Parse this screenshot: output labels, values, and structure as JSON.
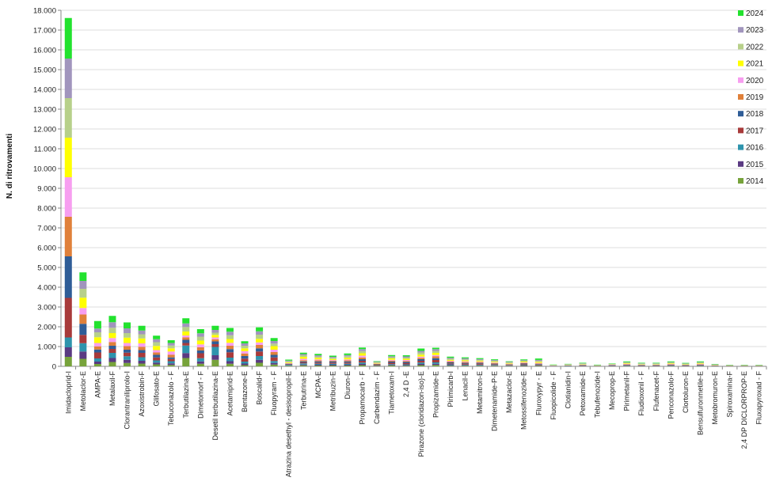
{
  "chart_data": {
    "type": "bar",
    "stacked": true,
    "title": "",
    "xlabel": "",
    "ylabel": "N. di ritrovamenti",
    "ylim": [
      0,
      18000
    ],
    "yticks": [
      "0",
      "1.000",
      "2.000",
      "3.000",
      "4.000",
      "5.000",
      "6.000",
      "7.000",
      "8.000",
      "9.000",
      "10.000",
      "11.000",
      "12.000",
      "13.000",
      "14.000",
      "15.000",
      "16.000",
      "17.000",
      "18.000"
    ],
    "grid": true,
    "legend_position": "right",
    "categories": [
      "Imidacloprid-I",
      "Metolaclor-E",
      "AMPA-E",
      "Metalaxil-F",
      "Clorantraniliprolo-I",
      "Azoxistrobin-F",
      "Glifosato-E",
      "Tebuconazolo - F",
      "Terbutilazina-E",
      "Dimetomorf - F",
      "Desetil terbutilazina-E",
      "Acetamiprid-E",
      "Bentazone-E",
      "Boscalid-F",
      "Fluopyram - F",
      "Atrazina desethyl - desisopropil-E",
      "Terbutrina-E",
      "MCPA-E",
      "Metribuzin-E",
      "Diuron-E",
      "Propamocarb - F",
      "Carbendazim - F",
      "Tiametoxam-I",
      "2,4 D -E",
      "Pirazone (cloridazon-iso)-E",
      "Propizamide-E",
      "Pirimicarb-I",
      "Lenacil-E",
      "Metamitron-E",
      "Dimetenamide-P-E",
      "Metazaclor-E",
      "Metossifenozide-E",
      "Fluroxypyr - E",
      "Fluopicolide - F",
      "Clotianidin-I",
      "Petoxamide-E",
      "Tebufenozide-I",
      "Mecoprop-E",
      "Pirimetanil-F",
      "Fludioxonil - F",
      "Flufenacet-F",
      "Penconazolo-F",
      "Clortoluron-E",
      "Bensulfuronmetile-E",
      "Metobromuron-E",
      "Spiroxamina-F",
      "2,4 DP DICLORPROP-E",
      "Fluxapyroxad - F"
    ],
    "series": [
      {
        "name": "2014",
        "color": "#77a33b",
        "values": [
          480,
          380,
          120,
          220,
          170,
          140,
          100,
          70,
          420,
          130,
          330,
          130,
          60,
          180,
          90,
          30,
          50,
          40,
          40,
          40,
          60,
          20,
          40,
          30,
          60,
          70,
          30,
          30,
          30,
          25,
          15,
          20,
          20,
          5,
          5,
          10,
          5,
          10,
          15,
          10,
          10,
          15,
          10,
          15,
          5,
          5,
          5,
          5
        ]
      },
      {
        "name": "2015",
        "color": "#5a3a82",
        "values": [
          480,
          370,
          120,
          200,
          160,
          140,
          90,
          80,
          250,
          120,
          230,
          130,
          80,
          150,
          80,
          20,
          40,
          40,
          40,
          40,
          60,
          15,
          30,
          30,
          60,
          60,
          30,
          25,
          25,
          20,
          15,
          20,
          15,
          5,
          5,
          10,
          5,
          10,
          15,
          10,
          10,
          15,
          10,
          15,
          5,
          5,
          5,
          5
        ]
      },
      {
        "name": "2016",
        "color": "#2e94ad",
        "values": [
          500,
          420,
          160,
          260,
          180,
          180,
          110,
          110,
          380,
          160,
          420,
          180,
          100,
          190,
          100,
          30,
          60,
          50,
          50,
          50,
          70,
          20,
          40,
          40,
          70,
          70,
          40,
          30,
          30,
          25,
          20,
          25,
          20,
          5,
          10,
          10,
          5,
          10,
          15,
          10,
          10,
          15,
          10,
          15,
          5,
          5,
          5,
          5
        ]
      },
      {
        "name": "2017",
        "color": "#a83a3a",
        "values": [
          2000,
          420,
          300,
          200,
          180,
          220,
          150,
          110,
          130,
          250,
          140,
          270,
          150,
          230,
          180,
          25,
          50,
          60,
          60,
          60,
          90,
          25,
          70,
          60,
          90,
          120,
          50,
          50,
          50,
          35,
          25,
          40,
          30,
          5,
          10,
          15,
          5,
          15,
          20,
          15,
          15,
          20,
          15,
          20,
          10,
          5,
          5,
          5
        ]
      },
      {
        "name": "2018",
        "color": "#2f5d97",
        "values": [
          2100,
          560,
          150,
          160,
          150,
          140,
          130,
          80,
          160,
          140,
          140,
          160,
          130,
          160,
          130,
          25,
          50,
          60,
          60,
          60,
          80,
          20,
          60,
          60,
          80,
          90,
          50,
          40,
          40,
          30,
          20,
          35,
          30,
          5,
          10,
          15,
          5,
          15,
          20,
          15,
          15,
          20,
          15,
          20,
          10,
          5,
          5,
          5
        ]
      },
      {
        "name": "2019",
        "color": "#e0803a",
        "values": [
          2000,
          470,
          160,
          190,
          180,
          170,
          120,
          140,
          120,
          160,
          110,
          170,
          130,
          170,
          140,
          20,
          60,
          50,
          40,
          50,
          90,
          20,
          50,
          50,
          70,
          90,
          40,
          40,
          40,
          30,
          20,
          30,
          30,
          5,
          10,
          15,
          5,
          10,
          20,
          15,
          15,
          20,
          15,
          20,
          10,
          5,
          5,
          5
        ]
      },
      {
        "name": "2020",
        "color": "#f79ef0",
        "values": [
          2000,
          330,
          170,
          200,
          160,
          170,
          120,
          160,
          100,
          150,
          90,
          150,
          120,
          130,
          120,
          20,
          70,
          50,
          30,
          50,
          90,
          20,
          40,
          50,
          60,
          70,
          40,
          40,
          30,
          30,
          20,
          30,
          30,
          10,
          10,
          15,
          5,
          10,
          20,
          15,
          15,
          20,
          10,
          20,
          10,
          5,
          5,
          5
        ]
      },
      {
        "name": "2021",
        "color": "#ffff00",
        "values": [
          2000,
          520,
          290,
          250,
          270,
          250,
          210,
          160,
          200,
          190,
          130,
          190,
          140,
          180,
          180,
          40,
          100,
          80,
          50,
          80,
          120,
          30,
          70,
          60,
          100,
          110,
          50,
          50,
          40,
          40,
          30,
          40,
          50,
          10,
          15,
          20,
          10,
          15,
          30,
          20,
          20,
          30,
          20,
          30,
          15,
          10,
          10,
          10
        ]
      },
      {
        "name": "2022",
        "color": "#b7d08a",
        "values": [
          2000,
          450,
          250,
          270,
          230,
          210,
          190,
          140,
          230,
          200,
          110,
          190,
          130,
          210,
          130,
          40,
          80,
          70,
          60,
          80,
          110,
          30,
          60,
          60,
          110,
          100,
          50,
          50,
          40,
          40,
          30,
          40,
          50,
          10,
          15,
          20,
          10,
          15,
          30,
          20,
          20,
          30,
          20,
          30,
          15,
          10,
          10,
          10
        ]
      },
      {
        "name": "2023",
        "color": "#a195bd",
        "values": [
          2000,
          400,
          190,
          280,
          240,
          190,
          150,
          130,
          180,
          170,
          140,
          180,
          120,
          170,
          130,
          40,
          60,
          60,
          50,
          60,
          100,
          30,
          50,
          60,
          80,
          90,
          50,
          50,
          40,
          40,
          30,
          30,
          50,
          10,
          15,
          20,
          10,
          15,
          25,
          20,
          20,
          25,
          20,
          25,
          15,
          10,
          10,
          10
        ]
      },
      {
        "name": "2024",
        "color": "#22e22e",
        "values": [
          2050,
          430,
          380,
          320,
          300,
          240,
          180,
          140,
          260,
          210,
          210,
          190,
          110,
          200,
          150,
          50,
          70,
          70,
          60,
          80,
          80,
          30,
          60,
          60,
          120,
          70,
          60,
          50,
          50,
          40,
          30,
          40,
          70,
          20,
          20,
          30,
          20,
          20,
          40,
          30,
          30,
          40,
          30,
          40,
          20,
          15,
          15,
          15
        ]
      }
    ]
  }
}
